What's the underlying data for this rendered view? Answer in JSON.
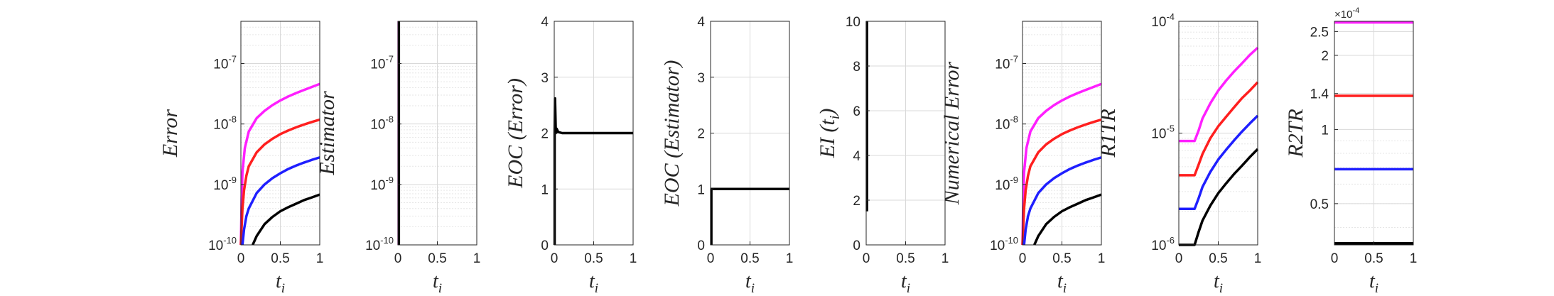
{
  "colors": {
    "black": "#000000",
    "blue": "#1f1fff",
    "red": "#ff1f1f",
    "magenta": "#ff1fff",
    "grid": "#d9d9d9",
    "axis": "#262626"
  },
  "chart_data": [
    {
      "type": "line",
      "yscale": "log",
      "ylabel": "Error",
      "xlabel": "t",
      "xlabel_sub": "i",
      "xlim": [
        0,
        1
      ],
      "ylim": [
        1e-10,
        5e-07
      ],
      "xticks": [
        "0",
        "0.5",
        "1"
      ],
      "yticks": [
        {
          "v": 1e-10,
          "b": "10",
          "e": "-10"
        },
        {
          "v": 1e-09,
          "b": "10",
          "e": "-9"
        },
        {
          "v": 1e-08,
          "b": "10",
          "e": "-8"
        },
        {
          "v": 1e-07,
          "b": "10",
          "e": "-7"
        }
      ],
      "grid": true,
      "series": [
        {
          "color": "magenta",
          "x": [
            0,
            0.01,
            0.02,
            0.05,
            0.1,
            0.2,
            0.3,
            0.4,
            0.5,
            0.6,
            0.7,
            0.8,
            0.9,
            1.0
          ],
          "y": [
            1e-10,
            6e-10,
            1.6e-09,
            4e-09,
            7.5e-09,
            1.25e-08,
            1.65e-08,
            2.05e-08,
            2.45e-08,
            2.85e-08,
            3.25e-08,
            3.65e-08,
            4.1e-08,
            4.6e-08
          ]
        },
        {
          "color": "red",
          "x": [
            0,
            0.02,
            0.04,
            0.07,
            0.1,
            0.2,
            0.3,
            0.4,
            0.5,
            0.6,
            0.7,
            0.8,
            0.9,
            1.0
          ],
          "y": [
            1e-10,
            4e-10,
            8e-10,
            1.4e-09,
            2e-09,
            3.4e-09,
            4.6e-09,
            5.7e-09,
            6.8e-09,
            7.8e-09,
            8.8e-09,
            9.8e-09,
            1.08e-08,
            1.18e-08
          ]
        },
        {
          "color": "blue",
          "x": [
            0.02,
            0.04,
            0.07,
            0.1,
            0.2,
            0.3,
            0.4,
            0.5,
            0.6,
            0.7,
            0.8,
            0.9,
            1.0
          ],
          "y": [
            1e-10,
            1.8e-10,
            3e-10,
            4e-10,
            7.2e-10,
            1e-09,
            1.27e-09,
            1.53e-09,
            1.8e-09,
            2.05e-09,
            2.3e-09,
            2.55e-09,
            2.8e-09
          ]
        },
        {
          "color": "black",
          "x": [
            0.15,
            0.2,
            0.3,
            0.4,
            0.5,
            0.6,
            0.7,
            0.8,
            0.9,
            1.0
          ],
          "y": [
            1e-10,
            1.4e-10,
            2.2e-10,
            2.9e-10,
            3.6e-10,
            4.2e-10,
            4.8e-10,
            5.5e-10,
            6.1e-10,
            6.8e-10
          ]
        }
      ]
    },
    {
      "type": "line",
      "yscale": "log",
      "ylabel": "Estimator",
      "xlabel": "t",
      "xlabel_sub": "i",
      "xlim": [
        0,
        1
      ],
      "ylim": [
        1e-10,
        5e-07
      ],
      "xticks": [
        "0",
        "0.5",
        "1"
      ],
      "yticks": [
        {
          "v": 1e-10,
          "b": "10",
          "e": "-10"
        },
        {
          "v": 1e-09,
          "b": "10",
          "e": "-9"
        },
        {
          "v": 1e-08,
          "b": "10",
          "e": "-8"
        },
        {
          "v": 1e-07,
          "b": "10",
          "e": "-7"
        }
      ],
      "grid": true,
      "series": [
        {
          "color": "magenta",
          "x": [
            0.01,
            0.01
          ],
          "y": [
            1e-10,
            5e-07
          ]
        },
        {
          "color": "black",
          "x": [
            0.012,
            0.012
          ],
          "y": [
            1e-10,
            5e-07
          ]
        }
      ]
    },
    {
      "type": "line",
      "yscale": "linear",
      "ylabel": "EOC (Error)",
      "xlabel": "t",
      "xlabel_sub": "i",
      "xlim": [
        0,
        1
      ],
      "ylim": [
        0,
        4
      ],
      "xticks": [
        "0",
        "0.5",
        "1"
      ],
      "yticks": [
        {
          "v": 0,
          "t": "0"
        },
        {
          "v": 1,
          "t": "1"
        },
        {
          "v": 2,
          "t": "2"
        },
        {
          "v": 3,
          "t": "3"
        },
        {
          "v": 4,
          "t": "4"
        }
      ],
      "grid": true,
      "series": [
        {
          "color": "black",
          "x": [
            0.005,
            0.005,
            0.01,
            0.02,
            0.03,
            0.05,
            0.1,
            0.5,
            1.0
          ],
          "y": [
            0.0,
            2.0,
            2.62,
            2.0,
            2.08,
            2.02,
            2.0,
            2.0,
            2.0
          ]
        }
      ]
    },
    {
      "type": "line",
      "yscale": "linear",
      "ylabel": "EOC (Estimator)",
      "xlabel": "t",
      "xlabel_sub": "i",
      "xlim": [
        0,
        1
      ],
      "ylim": [
        0,
        4
      ],
      "xticks": [
        "0",
        "0.5",
        "1"
      ],
      "yticks": [
        {
          "v": 0,
          "t": "0"
        },
        {
          "v": 1,
          "t": "1"
        },
        {
          "v": 2,
          "t": "2"
        },
        {
          "v": 3,
          "t": "3"
        },
        {
          "v": 4,
          "t": "4"
        }
      ],
      "grid": true,
      "series": [
        {
          "color": "black",
          "x": [
            0.01,
            0.01,
            1.0
          ],
          "y": [
            0.0,
            1.0,
            1.0
          ]
        }
      ]
    },
    {
      "type": "line",
      "yscale": "linear",
      "ylabel": "EI (t_i)",
      "xlabel": "t",
      "xlabel_sub": "i",
      "xlim": [
        0,
        1
      ],
      "ylim": [
        0,
        10
      ],
      "xticks": [
        "0",
        "0.5",
        "1"
      ],
      "yticks": [
        {
          "v": 0,
          "t": "0"
        },
        {
          "v": 2,
          "t": "2"
        },
        {
          "v": 4,
          "t": "4"
        },
        {
          "v": 6,
          "t": "6"
        },
        {
          "v": 8,
          "t": "8"
        },
        {
          "v": 10,
          "t": "10"
        }
      ],
      "grid": true,
      "series": [
        {
          "color": "black",
          "x": [
            0.01,
            0.01
          ],
          "y": [
            1.5,
            10
          ]
        }
      ]
    },
    {
      "type": "line",
      "yscale": "log",
      "ylabel": "Numerical Error",
      "xlabel": "t",
      "xlabel_sub": "i",
      "xlim": [
        0,
        1
      ],
      "ylim": [
        1e-10,
        5e-07
      ],
      "xticks": [
        "0",
        "0.5",
        "1"
      ],
      "yticks": [
        {
          "v": 1e-10,
          "b": "10",
          "e": "-10"
        },
        {
          "v": 1e-09,
          "b": "10",
          "e": "-9"
        },
        {
          "v": 1e-08,
          "b": "10",
          "e": "-8"
        },
        {
          "v": 1e-07,
          "b": "10",
          "e": "-7"
        }
      ],
      "grid": true,
      "series": [
        {
          "color": "magenta",
          "x": [
            0,
            0.01,
            0.02,
            0.05,
            0.1,
            0.2,
            0.3,
            0.4,
            0.5,
            0.6,
            0.7,
            0.8,
            0.9,
            1.0
          ],
          "y": [
            1e-10,
            6e-10,
            1.6e-09,
            4e-09,
            7.5e-09,
            1.25e-08,
            1.65e-08,
            2.05e-08,
            2.45e-08,
            2.85e-08,
            3.25e-08,
            3.65e-08,
            4.1e-08,
            4.6e-08
          ]
        },
        {
          "color": "red",
          "x": [
            0,
            0.02,
            0.04,
            0.07,
            0.1,
            0.2,
            0.3,
            0.4,
            0.5,
            0.6,
            0.7,
            0.8,
            0.9,
            1.0
          ],
          "y": [
            1e-10,
            4e-10,
            8e-10,
            1.4e-09,
            2e-09,
            3.4e-09,
            4.6e-09,
            5.7e-09,
            6.8e-09,
            7.8e-09,
            8.8e-09,
            9.8e-09,
            1.08e-08,
            1.18e-08
          ]
        },
        {
          "color": "blue",
          "x": [
            0.02,
            0.04,
            0.07,
            0.1,
            0.2,
            0.3,
            0.4,
            0.5,
            0.6,
            0.7,
            0.8,
            0.9,
            1.0
          ],
          "y": [
            1e-10,
            1.8e-10,
            3e-10,
            4e-10,
            7.2e-10,
            1e-09,
            1.27e-09,
            1.53e-09,
            1.8e-09,
            2.05e-09,
            2.3e-09,
            2.55e-09,
            2.8e-09
          ]
        },
        {
          "color": "black",
          "x": [
            0.15,
            0.2,
            0.3,
            0.4,
            0.5,
            0.6,
            0.7,
            0.8,
            0.9,
            1.0
          ],
          "y": [
            1e-10,
            1.4e-10,
            2.2e-10,
            2.9e-10,
            3.6e-10,
            4.2e-10,
            4.8e-10,
            5.5e-10,
            6.1e-10,
            6.8e-10
          ]
        }
      ]
    },
    {
      "type": "line",
      "yscale": "log",
      "ylabel": "R1TR",
      "xlabel": "t",
      "xlabel_sub": "i",
      "xlim": [
        0,
        1
      ],
      "ylim": [
        1e-06,
        0.0001
      ],
      "xticks": [
        "0",
        "0.5",
        "1"
      ],
      "yticks": [
        {
          "v": 1e-06,
          "b": "10",
          "e": "-6"
        },
        {
          "v": 1e-05,
          "b": "10",
          "e": "-5"
        },
        {
          "v": 0.0001,
          "b": "10",
          "e": "-4"
        }
      ],
      "grid": true,
      "series": [
        {
          "color": "magenta",
          "x": [
            0,
            0.2,
            0.25,
            0.3,
            0.4,
            0.5,
            0.6,
            0.7,
            0.8,
            0.9,
            1.0
          ],
          "y": [
            8.5e-06,
            8.5e-06,
            1.05e-05,
            1.35e-05,
            1.85e-05,
            2.4e-05,
            2.95e-05,
            3.55e-05,
            4.2e-05,
            5e-05,
            5.8e-05
          ]
        },
        {
          "color": "red",
          "x": [
            0,
            0.2,
            0.25,
            0.3,
            0.4,
            0.5,
            0.6,
            0.7,
            0.8,
            0.9,
            1.0
          ],
          "y": [
            4.2e-06,
            4.2e-06,
            5.2e-06,
            6.5e-06,
            9e-06,
            1.15e-05,
            1.4e-05,
            1.7e-05,
            2.05e-05,
            2.4e-05,
            2.85e-05
          ]
        },
        {
          "color": "blue",
          "x": [
            0,
            0.2,
            0.25,
            0.3,
            0.4,
            0.5,
            0.6,
            0.7,
            0.8,
            0.9,
            1.0
          ],
          "y": [
            2.1e-06,
            2.1e-06,
            2.6e-06,
            3.3e-06,
            4.5e-06,
            5.8e-06,
            7.1e-06,
            8.6e-06,
            1.03e-05,
            1.22e-05,
            1.43e-05
          ]
        },
        {
          "color": "black",
          "x": [
            0,
            0.2,
            0.25,
            0.3,
            0.4,
            0.5,
            0.6,
            0.7,
            0.8,
            0.9,
            1.0
          ],
          "y": [
            1e-06,
            1e-06,
            1.3e-06,
            1.65e-06,
            2.25e-06,
            2.9e-06,
            3.55e-06,
            4.3e-06,
            5.1e-06,
            6.1e-06,
            7.2e-06
          ]
        }
      ]
    },
    {
      "type": "line",
      "yscale": "log",
      "ylabel": "R2TR",
      "xlabel": "t",
      "xlabel_sub": "i",
      "xlim": [
        0,
        1
      ],
      "ylim": [
        3.4e-05,
        0.000275
      ],
      "axis_exponent": {
        "b": "×10",
        "e": "-4"
      },
      "xticks": [
        "0",
        "0.5",
        "1"
      ],
      "yticks": [
        {
          "v": 5e-05,
          "t": "0.5"
        },
        {
          "v": 0.0001,
          "t": "1"
        },
        {
          "v": 0.00014,
          "t": "1.4"
        },
        {
          "v": 0.0002,
          "t": "2"
        },
        {
          "v": 0.00025,
          "t": "2.5"
        }
      ],
      "grid": true,
      "series": [
        {
          "color": "magenta",
          "x": [
            0,
            1
          ],
          "y": [
            0.000272,
            0.000272
          ]
        },
        {
          "color": "red",
          "x": [
            0,
            1
          ],
          "y": [
            0.000137,
            0.000137
          ]
        },
        {
          "color": "blue",
          "x": [
            0,
            1
          ],
          "y": [
            6.9e-05,
            6.9e-05
          ]
        },
        {
          "color": "black",
          "x": [
            0,
            1
          ],
          "y": [
            3.45e-05,
            3.45e-05
          ]
        }
      ]
    }
  ]
}
